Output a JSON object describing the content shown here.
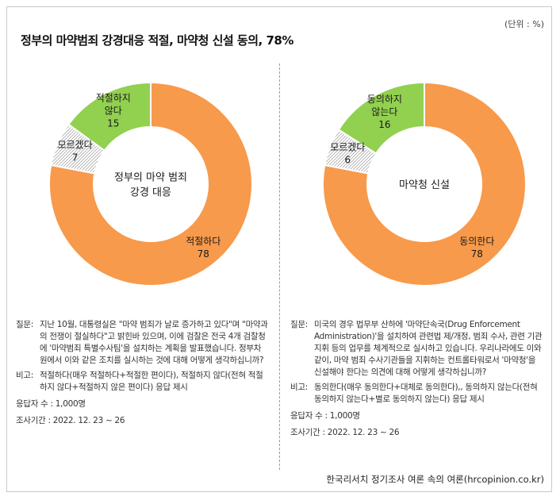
{
  "unit": "(단위 : %)",
  "title": "정부의 마약범죄 강경대응 적절, 마약청 신설 동의, 78%",
  "chart_data": [
    {
      "type": "pie",
      "center_label": [
        "정부의 마약 범죄",
        "강경 대응"
      ],
      "slices": [
        {
          "label": [
            "적절하다"
          ],
          "value": 78,
          "color": "#f79a4b"
        },
        {
          "label": [
            "모르겠다"
          ],
          "value": 7,
          "color": "hatch"
        },
        {
          "label": [
            "적절하지",
            "않다"
          ],
          "value": 15,
          "color": "#92d050"
        }
      ]
    },
    {
      "type": "pie",
      "center_label": [
        "마약청 신설"
      ],
      "slices": [
        {
          "label": [
            "동의한다"
          ],
          "value": 78,
          "color": "#f79a4b"
        },
        {
          "label": [
            "모르겠다"
          ],
          "value": 6,
          "color": "hatch"
        },
        {
          "label": [
            "동의하지",
            "않는다"
          ],
          "value": 16,
          "color": "#92d050"
        }
      ]
    }
  ],
  "notes": [
    {
      "question_key": "질문:",
      "question": "지난 10월, 대통령실은 \"마약 범죄가 날로 증가하고 있다\"며 \"마약과의 전쟁이 절실하다\"고 밝힌바 있으며, 이에 검찰은 전국 4개 검찰청에 '마약범죄 특별수사팀'을 설치하는 계획을 발표했습니다. 정부차원에서 이와 같은 조치를 실시하는 것에 대해 어떻게 생각하십니까?",
      "remark_key": "비고:",
      "remark": "적절하다(매우 적절하다+적절한 편이다), 적절하지 않다(전혀 적절하지 않다+적절하지 않은 편이다) 응답 제시",
      "respondents": "응답자 수 : 1,000명",
      "period": "조사기간 : 2022. 12. 23 ~ 26"
    },
    {
      "question_key": "질문:",
      "question": "미국의 경우 법무부 산하에 '마약단속국(Drug Enforcement Administration)'을 설치하여 관련법 제/개정, 범죄 수사, 관련 기관 지휘 등의 업무를 체계적으로 실시하고 있습니다. 우리나라에도 이와 같이, 마약 범죄 수사기관들을 지휘하는 컨트롤타워로서 '마약청'을 신설해야 한다는 의견에 대해 어떻게 생각하십니까?",
      "remark_key": "비고:",
      "remark": "동의한다(매우 동의한다+대체로 동의한다),, 동의하지 않는다(전혀 동의하지 않는다+별로 동의하지 않는다) 응답 제시",
      "respondents": "응답자 수 : 1,000명",
      "period": "조사기간 : 2022. 12. 23 ~ 26"
    }
  ],
  "source": "한국리서치 정기조사 여론 속의 여론(hrcopinion.co.kr)"
}
